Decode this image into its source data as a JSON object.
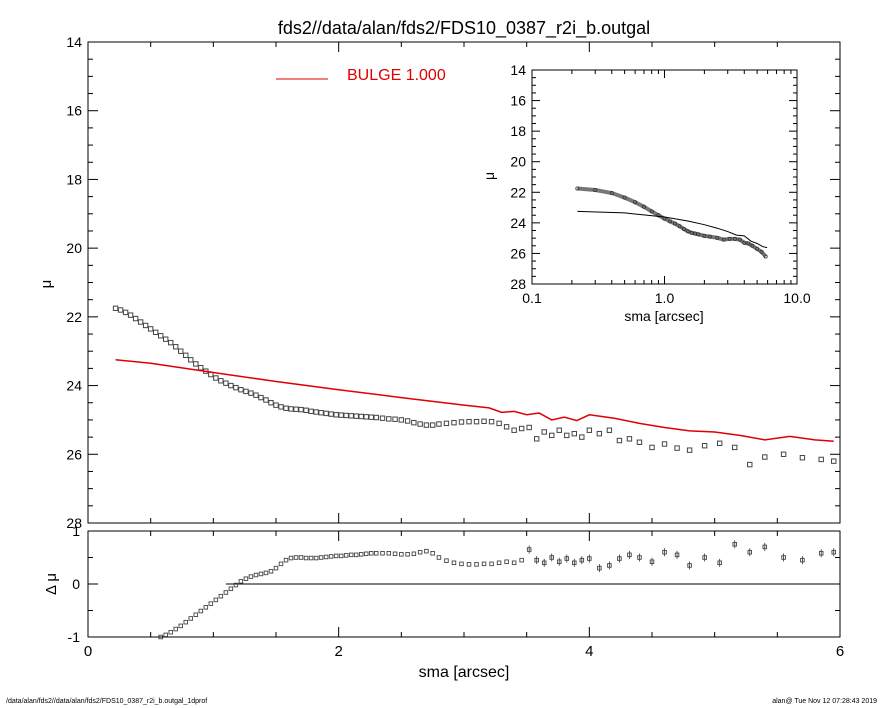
{
  "title": "fds2//data/alan/fds2/FDS10_0387_r2i_b.outgal",
  "footer": {
    "left": "/data/alan/fds2//data/alan/fds2/FDS10_0387_r2i_b.outgal_1dprof",
    "right": "alan@  Tue Nov 12 07:28:43 2019"
  },
  "colors": {
    "model": "#e00000",
    "data": "#444444",
    "axis": "#000000"
  },
  "chart_data": [
    {
      "type": "scatter",
      "name": "main-profile",
      "xlabel": "sma [arcsec]",
      "ylabel": "μ",
      "xlim": [
        0,
        6
      ],
      "ylim": [
        28,
        14
      ],
      "y_inverted": true,
      "xticks": [
        0,
        2,
        4,
        6
      ],
      "yticks": [
        14,
        16,
        18,
        20,
        22,
        24,
        26,
        28
      ],
      "legend": {
        "label": "BULGE  1.000",
        "position": "top-center"
      },
      "series": [
        {
          "name": "data",
          "marker": "square",
          "x": [
            0.22,
            0.26,
            0.3,
            0.34,
            0.38,
            0.42,
            0.46,
            0.5,
            0.54,
            0.58,
            0.62,
            0.66,
            0.7,
            0.74,
            0.78,
            0.82,
            0.86,
            0.9,
            0.94,
            0.98,
            1.02,
            1.06,
            1.1,
            1.14,
            1.18,
            1.22,
            1.26,
            1.3,
            1.34,
            1.38,
            1.42,
            1.46,
            1.5,
            1.54,
            1.58,
            1.62,
            1.66,
            1.7,
            1.74,
            1.78,
            1.82,
            1.86,
            1.9,
            1.94,
            1.98,
            2.02,
            2.06,
            2.1,
            2.14,
            2.18,
            2.22,
            2.26,
            2.3,
            2.35,
            2.4,
            2.45,
            2.5,
            2.55,
            2.6,
            2.65,
            2.7,
            2.75,
            2.8,
            2.86,
            2.92,
            2.98,
            3.04,
            3.1,
            3.16,
            3.22,
            3.28,
            3.34,
            3.4,
            3.46,
            3.52,
            3.58,
            3.64,
            3.7,
            3.76,
            3.82,
            3.88,
            3.94,
            4.0,
            4.08,
            4.16,
            4.24,
            4.32,
            4.4,
            4.5,
            4.6,
            4.7,
            4.8,
            4.92,
            5.04,
            5.16,
            5.28,
            5.4,
            5.55,
            5.7,
            5.85,
            5.95
          ],
          "y": [
            21.75,
            21.8,
            21.87,
            21.95,
            22.05,
            22.15,
            22.25,
            22.35,
            22.45,
            22.55,
            22.65,
            22.75,
            22.87,
            23.0,
            23.12,
            23.25,
            23.37,
            23.48,
            23.58,
            23.68,
            23.78,
            23.86,
            23.93,
            24.0,
            24.06,
            24.12,
            24.17,
            24.22,
            24.28,
            24.35,
            24.42,
            24.5,
            24.57,
            24.62,
            24.66,
            24.68,
            24.69,
            24.7,
            24.72,
            24.75,
            24.77,
            24.79,
            24.81,
            24.83,
            24.85,
            24.86,
            24.87,
            24.88,
            24.89,
            24.9,
            24.91,
            24.92,
            24.93,
            24.95,
            24.97,
            24.98,
            25.0,
            25.03,
            25.08,
            25.12,
            25.15,
            25.15,
            25.12,
            25.1,
            25.08,
            25.06,
            25.05,
            25.05,
            25.04,
            25.05,
            25.1,
            25.2,
            25.3,
            25.25,
            25.22,
            25.55,
            25.35,
            25.45,
            25.3,
            25.45,
            25.4,
            25.5,
            25.3,
            25.4,
            25.3,
            25.6,
            25.55,
            25.65,
            25.8,
            25.7,
            25.82,
            25.88,
            25.75,
            25.68,
            25.8,
            26.3,
            26.08,
            26.0,
            26.1,
            26.15,
            26.2
          ]
        },
        {
          "name": "BULGE  1.000",
          "line": true,
          "x": [
            0.22,
            0.5,
            1.0,
            1.5,
            2.0,
            2.5,
            3.0,
            3.2,
            3.3,
            3.4,
            3.5,
            3.6,
            3.7,
            3.8,
            3.9,
            4.0,
            4.2,
            4.4,
            4.6,
            4.8,
            5.0,
            5.2,
            5.4,
            5.6,
            5.8,
            5.95
          ],
          "y": [
            23.25,
            23.35,
            23.62,
            23.88,
            24.12,
            24.35,
            24.57,
            24.65,
            24.78,
            24.75,
            24.85,
            24.8,
            25.0,
            24.92,
            25.02,
            24.85,
            24.95,
            25.1,
            25.22,
            25.32,
            25.35,
            25.45,
            25.58,
            25.48,
            25.58,
            25.62
          ]
        }
      ]
    },
    {
      "type": "scatter",
      "name": "inset-log-profile",
      "xlabel": "sma [arcsec]",
      "ylabel": "μ",
      "xscale": "log",
      "xlim": [
        0.1,
        10.0
      ],
      "ylim": [
        28,
        14
      ],
      "y_inverted": true,
      "xticks": [
        "0.1",
        "1.0",
        "10.0"
      ],
      "yticks": [
        14,
        16,
        18,
        20,
        22,
        24,
        26,
        28
      ],
      "series": [
        {
          "name": "data",
          "x": [
            0.22,
            0.3,
            0.4,
            0.5,
            0.6,
            0.7,
            0.8,
            0.9,
            1.0,
            1.1,
            1.2,
            1.3,
            1.4,
            1.5,
            1.6,
            1.7,
            1.8,
            2.0,
            2.2,
            2.5,
            2.8,
            3.1,
            3.4,
            3.7,
            4.0,
            4.3,
            4.6,
            5.0,
            5.4,
            5.8
          ],
          "y": [
            21.75,
            21.85,
            22.05,
            22.35,
            22.65,
            22.95,
            23.25,
            23.5,
            23.72,
            23.9,
            24.05,
            24.22,
            24.4,
            24.55,
            24.65,
            24.7,
            24.75,
            24.85,
            24.9,
            24.98,
            25.1,
            25.05,
            25.05,
            25.1,
            25.3,
            25.35,
            25.5,
            25.7,
            25.9,
            26.2
          ]
        },
        {
          "name": "BULGE  1.000",
          "line": true,
          "x": [
            0.22,
            0.5,
            1.0,
            1.5,
            2.0,
            2.5,
            3.0,
            3.5,
            4.0,
            4.5,
            5.0,
            5.5,
            5.95
          ],
          "y": [
            23.25,
            23.35,
            23.62,
            23.88,
            24.12,
            24.35,
            24.57,
            24.8,
            24.85,
            25.2,
            25.35,
            25.55,
            25.62
          ]
        }
      ]
    },
    {
      "type": "scatter",
      "name": "residuals",
      "xlabel": "sma [arcsec]",
      "ylabel": "Δ μ",
      "xlim": [
        0,
        6
      ],
      "ylim": [
        -1,
        1
      ],
      "xticks": [
        0,
        2,
        4,
        6
      ],
      "yticks": [
        -1,
        0,
        1
      ],
      "reference_line": {
        "y": 0,
        "x_from": 1.1,
        "x_to": 6
      },
      "series": [
        {
          "name": "residual",
          "x": [
            0.58,
            0.62,
            0.66,
            0.7,
            0.74,
            0.78,
            0.82,
            0.86,
            0.9,
            0.94,
            0.98,
            1.02,
            1.06,
            1.1,
            1.14,
            1.18,
            1.22,
            1.26,
            1.3,
            1.34,
            1.38,
            1.42,
            1.46,
            1.5,
            1.54,
            1.58,
            1.62,
            1.66,
            1.7,
            1.74,
            1.78,
            1.82,
            1.86,
            1.9,
            1.94,
            1.98,
            2.02,
            2.06,
            2.1,
            2.14,
            2.18,
            2.22,
            2.26,
            2.3,
            2.35,
            2.4,
            2.45,
            2.5,
            2.55,
            2.6,
            2.65,
            2.7,
            2.75,
            2.8,
            2.86,
            2.92,
            2.98,
            3.04,
            3.1,
            3.16,
            3.22,
            3.28,
            3.34,
            3.4,
            3.46,
            3.52,
            3.58,
            3.64,
            3.7,
            3.76,
            3.82,
            3.88,
            3.94,
            4.0,
            4.08,
            4.16,
            4.24,
            4.32,
            4.4,
            4.5,
            4.6,
            4.7,
            4.8,
            4.92,
            5.04,
            5.16,
            5.28,
            5.4,
            5.55,
            5.7,
            5.85,
            5.95
          ],
          "y": [
            -1.0,
            -0.96,
            -0.91,
            -0.85,
            -0.79,
            -0.72,
            -0.65,
            -0.58,
            -0.51,
            -0.44,
            -0.37,
            -0.3,
            -0.23,
            -0.16,
            -0.09,
            -0.02,
            0.05,
            0.1,
            0.14,
            0.17,
            0.19,
            0.21,
            0.24,
            0.3,
            0.38,
            0.45,
            0.49,
            0.5,
            0.5,
            0.49,
            0.49,
            0.49,
            0.5,
            0.51,
            0.52,
            0.53,
            0.53,
            0.54,
            0.55,
            0.55,
            0.56,
            0.57,
            0.58,
            0.58,
            0.58,
            0.58,
            0.57,
            0.56,
            0.56,
            0.57,
            0.6,
            0.62,
            0.58,
            0.5,
            0.44,
            0.4,
            0.38,
            0.37,
            0.37,
            0.38,
            0.38,
            0.4,
            0.42,
            0.4,
            0.45,
            0.65,
            0.45,
            0.4,
            0.5,
            0.42,
            0.48,
            0.4,
            0.45,
            0.48,
            0.3,
            0.35,
            0.48,
            0.55,
            0.5,
            0.42,
            0.6,
            0.55,
            0.35,
            0.5,
            0.4,
            0.75,
            0.6,
            0.7,
            0.5,
            0.45,
            0.58,
            0.6
          ]
        }
      ]
    }
  ]
}
